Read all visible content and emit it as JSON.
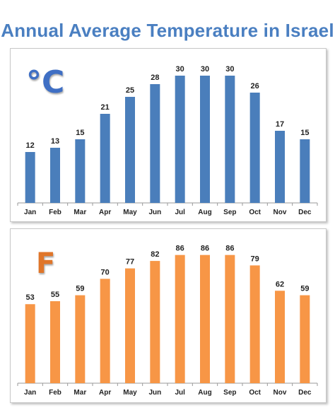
{
  "title": "Annual Average Temperature in Israel",
  "chart_data": [
    {
      "type": "bar",
      "unit_label": "°C",
      "color": "#4a7ebb",
      "categories": [
        "Jan",
        "Feb",
        "Mar",
        "Apr",
        "May",
        "Jun",
        "Jul",
        "Aug",
        "Sep",
        "Oct",
        "Nov",
        "Dec"
      ],
      "values": [
        12,
        13,
        15,
        21,
        25,
        28,
        30,
        30,
        30,
        26,
        17,
        15
      ],
      "ylim": [
        0,
        32
      ],
      "grid": false
    },
    {
      "type": "bar",
      "unit_label": "F",
      "color": "#f79646",
      "categories": [
        "Jan",
        "Feb",
        "Mar",
        "Apr",
        "May",
        "Jun",
        "Jul",
        "Aug",
        "Sep",
        "Oct",
        "Nov",
        "Dec"
      ],
      "values": [
        53,
        55,
        59,
        70,
        77,
        82,
        86,
        86,
        86,
        79,
        62,
        59
      ],
      "ylim": [
        0,
        92
      ],
      "grid": false
    }
  ]
}
